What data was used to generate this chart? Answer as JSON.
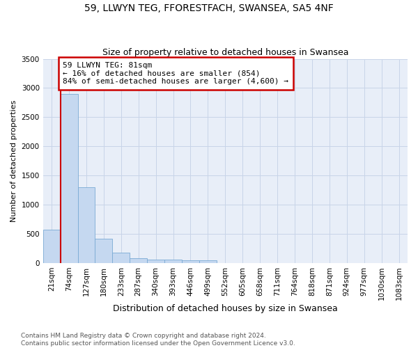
{
  "title": "59, LLWYN TEG, FFORESTFACH, SWANSEA, SA5 4NF",
  "subtitle": "Size of property relative to detached houses in Swansea",
  "xlabel": "Distribution of detached houses by size in Swansea",
  "ylabel": "Number of detached properties",
  "bar_color": "#c5d8f0",
  "bar_edge_color": "#7aaad4",
  "categories": [
    "21sqm",
    "74sqm",
    "127sqm",
    "180sqm",
    "233sqm",
    "287sqm",
    "340sqm",
    "393sqm",
    "446sqm",
    "499sqm",
    "552sqm",
    "605sqm",
    "658sqm",
    "711sqm",
    "764sqm",
    "818sqm",
    "871sqm",
    "924sqm",
    "977sqm",
    "1030sqm",
    "1083sqm"
  ],
  "values": [
    575,
    2900,
    1300,
    420,
    175,
    80,
    65,
    55,
    50,
    45,
    0,
    0,
    0,
    0,
    0,
    0,
    0,
    0,
    0,
    0,
    0
  ],
  "ylim": [
    0,
    3500
  ],
  "yticks": [
    0,
    500,
    1000,
    1500,
    2000,
    2500,
    3000,
    3500
  ],
  "property_line_bar_index": 1,
  "annotation_text": "59 LLWYN TEG: 81sqm\n← 16% of detached houses are smaller (854)\n84% of semi-detached houses are larger (4,600) →",
  "annotation_box_color": "#ffffff",
  "annotation_edge_color": "#cc0000",
  "vline_color": "#cc0000",
  "grid_color": "#c8d4e8",
  "background_color": "#e8eef8",
  "footer_text": "Contains HM Land Registry data © Crown copyright and database right 2024.\nContains public sector information licensed under the Open Government Licence v3.0.",
  "title_fontsize": 10,
  "subtitle_fontsize": 9,
  "xlabel_fontsize": 9,
  "ylabel_fontsize": 8,
  "tick_fontsize": 7.5,
  "annotation_fontsize": 8,
  "footer_fontsize": 6.5
}
